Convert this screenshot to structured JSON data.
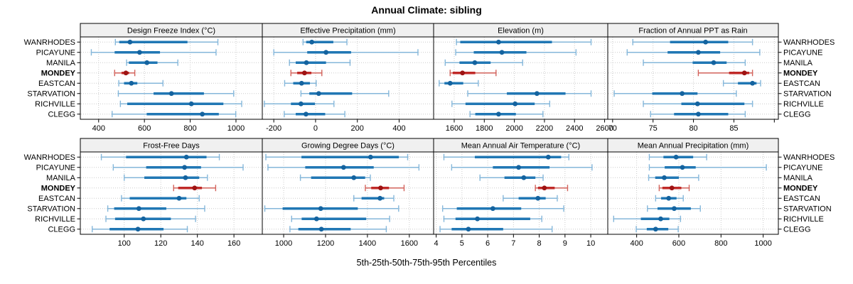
{
  "title": "Annual Climate: sibling",
  "footer": {
    "axis_caption": "5th-25th-50th-75th-95th Percentiles"
  },
  "colors": {
    "series_light": "#85b7da",
    "series_mid": "#2077b4",
    "series_dot": "#14639f",
    "highlight_light": "#d2625b",
    "highlight_mid": "#c02a28",
    "highlight_dot": "#9e1313",
    "header_fill": "#f0f0f0",
    "grid": "#cbcbcb",
    "border": "#000000",
    "plot_bg": "#ffffff"
  },
  "chart_data": {
    "type": "dotplot-percentiles",
    "percentile_labels": [
      "5th",
      "25th",
      "50th",
      "75th",
      "95th"
    ],
    "stations": [
      "WANRHODES",
      "PICAYUNE",
      "MANILA",
      "MONDEY",
      "EASTCAN",
      "STARVATION",
      "RICHVILLE",
      "CLEGG"
    ],
    "highlight_station": "MONDEY",
    "legend_position": "none",
    "grid": "dotted",
    "panels": [
      {
        "title": "Design Freeze Index (°C)",
        "grid_row": 0,
        "grid_col": 0,
        "xlim": [
          320,
          1115
        ],
        "ticks": [
          400,
          600,
          800,
          1000
        ],
        "unlabeled_ticks": [],
        "values": [
          [
            473,
            490,
            537,
            788,
            921
          ],
          [
            368,
            470,
            579,
            668,
            913
          ],
          [
            522,
            532,
            611,
            657,
            746
          ],
          [
            470,
            500,
            519,
            533,
            558
          ],
          [
            488,
            511,
            543,
            569,
            681
          ],
          [
            486,
            640,
            718,
            860,
            990
          ],
          [
            495,
            525,
            805,
            945,
            1025
          ],
          [
            459,
            610,
            853,
            925,
            999
          ]
        ]
      },
      {
        "title": "Effective Precipitation (mm)",
        "grid_row": 0,
        "grid_col": 1,
        "xlim": [
          -255,
          565
        ],
        "ticks": [
          -200,
          0,
          200,
          400
        ],
        "unlabeled_ticks": [],
        "values": [
          [
            -60,
            -45,
            -18,
            85,
            150
          ],
          [
            -200,
            -40,
            50,
            170,
            490
          ],
          [
            -125,
            -95,
            -44,
            50,
            165
          ],
          [
            -118,
            -88,
            -53,
            -20,
            30
          ],
          [
            -148,
            -107,
            -67,
            -27,
            3
          ],
          [
            -70,
            -30,
            15,
            175,
            350
          ],
          [
            -245,
            -118,
            -70,
            -3,
            88
          ],
          [
            -150,
            -95,
            -46,
            46,
            140
          ]
        ]
      },
      {
        "title": "Elevation (m)",
        "grid_row": 0,
        "grid_col": 2,
        "xlim": [
          1463,
          2621
        ],
        "ticks": [
          1600,
          1800,
          2000,
          2200,
          2400,
          2600
        ],
        "unlabeled_ticks": [],
        "values": [
          [
            1615,
            1640,
            1895,
            2250,
            2510
          ],
          [
            1610,
            1730,
            1917,
            2080,
            2410
          ],
          [
            1540,
            1635,
            1737,
            1842,
            2055
          ],
          [
            1573,
            1590,
            1655,
            1740,
            1878
          ],
          [
            1500,
            1535,
            1573,
            1660,
            1760
          ],
          [
            1690,
            1950,
            2150,
            2340,
            2510
          ],
          [
            1585,
            1675,
            2005,
            2135,
            2235
          ],
          [
            1705,
            1740,
            1895,
            2010,
            2190
          ]
        ]
      },
      {
        "title": "Fraction of Annual PPT as Rain",
        "grid_row": 0,
        "grid_col": 3,
        "xlim": [
          69.4,
          90.5
        ],
        "ticks": [
          70,
          75,
          80,
          85
        ],
        "unlabeled_ticks": [
          90
        ],
        "values": [
          [
            72.5,
            77.1,
            81.5,
            84.3,
            87.3
          ],
          [
            71.8,
            76.8,
            80.6,
            83.3,
            88.2
          ],
          [
            73.8,
            79.9,
            82.5,
            84.1,
            86.4
          ],
          [
            80.6,
            84.4,
            86.3,
            86.9,
            87.3
          ],
          [
            83.7,
            85.5,
            87.3,
            87.8,
            88.3
          ],
          [
            70.2,
            74.9,
            78.6,
            80.5,
            85.3
          ],
          [
            73.8,
            78.5,
            80.5,
            86.3,
            87.3
          ],
          [
            74.7,
            77.6,
            80.6,
            84.3,
            86.4
          ]
        ]
      },
      {
        "title": "Frost-Free Days",
        "grid_row": 1,
        "grid_col": 0,
        "xlim": [
          76,
          175.5
        ],
        "ticks": [
          100,
          120,
          140,
          160
        ],
        "unlabeled_ticks": [],
        "values": [
          [
            87.5,
            101,
            134,
            145,
            152
          ],
          [
            94,
            112,
            133,
            142,
            165
          ],
          [
            100,
            111,
            133.5,
            141,
            145.5
          ],
          [
            127,
            129.5,
            138.5,
            142.5,
            150
          ],
          [
            98.5,
            103,
            130,
            134,
            141
          ],
          [
            91,
            94.5,
            108,
            123,
            144
          ],
          [
            90,
            95,
            110.5,
            125.5,
            139
          ],
          [
            82.5,
            92,
            107.5,
            121.5,
            134.5
          ]
        ]
      },
      {
        "title": "Growing Degree Days (°C)",
        "grid_row": 1,
        "grid_col": 1,
        "xlim": [
          898,
          1716
        ],
        "ticks": [
          1000,
          1200,
          1400,
          1600
        ],
        "unlabeled_ticks": [],
        "values": [
          [
            915,
            1085,
            1415,
            1550,
            1592
          ],
          [
            925,
            1103,
            1286,
            1430,
            1646
          ],
          [
            1080,
            1131,
            1335,
            1389,
            1414
          ],
          [
            1390,
            1418,
            1463,
            1503,
            1575
          ],
          [
            1335,
            1372,
            1460,
            1480,
            1526
          ],
          [
            910,
            995,
            1177,
            1354,
            1549
          ],
          [
            1038,
            1086,
            1157,
            1394,
            1506
          ],
          [
            1030,
            1070,
            1180,
            1320,
            1490
          ]
        ]
      },
      {
        "title": "Mean Annual Air Temperature (°C)",
        "grid_row": 1,
        "grid_col": 2,
        "xlim": [
          3.9,
          10.66
        ],
        "ticks": [
          4,
          5,
          6,
          7,
          8,
          9,
          10
        ],
        "unlabeled_ticks": [],
        "values": [
          [
            4.3,
            5.5,
            8.35,
            8.85,
            9.15
          ],
          [
            4.6,
            6.2,
            7.2,
            8.4,
            10.05
          ],
          [
            5.7,
            6.65,
            7.4,
            7.85,
            8.15
          ],
          [
            7.85,
            7.95,
            8.2,
            8.6,
            9.1
          ],
          [
            6.6,
            7.2,
            7.95,
            8.25,
            8.7
          ],
          [
            4.25,
            4.8,
            6.2,
            7.3,
            8.95
          ],
          [
            4.3,
            4.75,
            5.6,
            7.65,
            8.1
          ],
          [
            4.15,
            4.6,
            5.25,
            6.6,
            8.5
          ]
        ]
      },
      {
        "title": "Mean Annual Precipitation (mm)",
        "grid_row": 1,
        "grid_col": 3,
        "xlim": [
          263,
          1072
        ],
        "ticks": [
          400,
          600,
          800,
          1000
        ],
        "unlabeled_ticks": [],
        "values": [
          [
            460,
            527,
            587,
            668,
            732
          ],
          [
            460,
            533,
            617,
            680,
            1015
          ],
          [
            457,
            488,
            531,
            600,
            694
          ],
          [
            507,
            522,
            567,
            612,
            649
          ],
          [
            490,
            516,
            552,
            589,
            621
          ],
          [
            451,
            499,
            578,
            657,
            702
          ],
          [
            291,
            420,
            514,
            555,
            608
          ],
          [
            398,
            448,
            490,
            550,
            597
          ]
        ]
      }
    ]
  }
}
